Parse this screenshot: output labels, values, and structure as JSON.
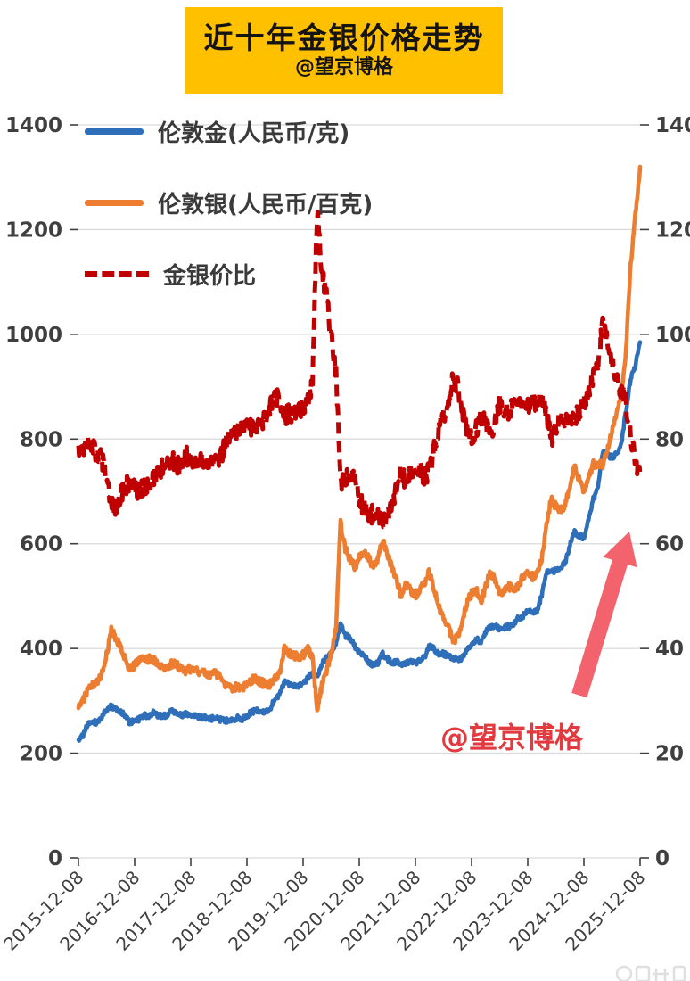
{
  "header": {
    "title": "近十年金银价格走势",
    "byline": "@望京博格"
  },
  "watermark": {
    "text": "@望京博格"
  },
  "colors": {
    "title_bg": "#FFC000",
    "watermark": "#E23A3F",
    "arrow": "#F2636E",
    "gridline": "#D9D9D9",
    "axis_text": "#3F3F3F"
  },
  "chart_data": {
    "type": "line",
    "title": "近十年金银价格走势",
    "x_start": "2015-12",
    "x_step": "1 month",
    "x_tick_labels": [
      "2015-12-08",
      "2016-12-08",
      "2017-12-08",
      "2018-12-08",
      "2019-12-08",
      "2020-12-08",
      "2021-12-08",
      "2022-12-08",
      "2023-12-08",
      "2024-12-08",
      "2025-12-08"
    ],
    "left_axis": {
      "max": 1400,
      "min": 0,
      "ticks": [
        1400,
        1200,
        1000,
        800,
        600,
        400,
        200,
        0
      ]
    },
    "right_axis": {
      "max": 140,
      "min": 0,
      "ticks": [
        140,
        120,
        100,
        80,
        60,
        40,
        20,
        0
      ]
    },
    "grid": "horizontal",
    "legend_position": "top-left-inside",
    "series": [
      {
        "name": "伦敦金(人民币/克)",
        "axis": "left",
        "color": "#2F6FBA",
        "style": "solid",
        "values": [
          222,
          235,
          255,
          262,
          258,
          270,
          285,
          290,
          283,
          278,
          272,
          258,
          263,
          265,
          272,
          270,
          277,
          272,
          270,
          274,
          282,
          278,
          272,
          276,
          272,
          270,
          268,
          268,
          265,
          268,
          265,
          262,
          263,
          262,
          268,
          266,
          272,
          278,
          282,
          278,
          278,
          285,
          305,
          312,
          335,
          332,
          330,
          328,
          330,
          345,
          352,
          345,
          370,
          382,
          390,
          408,
          448,
          425,
          420,
          405,
          392,
          390,
          372,
          368,
          372,
          390,
          380,
          372,
          375,
          368,
          372,
          378,
          372,
          378,
          385,
          405,
          398,
          390,
          390,
          385,
          382,
          378,
          382,
          398,
          405,
          418,
          412,
          432,
          440,
          442,
          438,
          440,
          442,
          445,
          458,
          462,
          472,
          468,
          472,
          502,
          545,
          548,
          548,
          555,
          565,
          598,
          622,
          615,
          612,
          650,
          685,
          705,
          775,
          770,
          765,
          772,
          790,
          855,
          915,
          940,
          985
        ]
      },
      {
        "name": "伦敦银(人民币/百克)",
        "axis": "left",
        "color": "#ED7D31",
        "style": "solid",
        "values": [
          290,
          300,
          320,
          330,
          335,
          352,
          390,
          435,
          420,
          402,
          380,
          360,
          368,
          375,
          382,
          380,
          378,
          372,
          362,
          360,
          372,
          368,
          362,
          358,
          362,
          360,
          355,
          352,
          350,
          352,
          348,
          335,
          328,
          322,
          328,
          325,
          332,
          340,
          342,
          335,
          332,
          332,
          345,
          355,
          398,
          392,
          388,
          382,
          388,
          398,
          385,
          280,
          330,
          358,
          392,
          438,
          640,
          590,
          570,
          555,
          572,
          585,
          572,
          555,
          572,
          610,
          580,
          555,
          528,
          500,
          522,
          512,
          502,
          512,
          528,
          548,
          512,
          478,
          462,
          442,
          415,
          422,
          448,
          488,
          505,
          512,
          488,
          518,
          545,
          532,
          505,
          512,
          518,
          512,
          520,
          538,
          548,
          535,
          548,
          572,
          638,
          685,
          672,
          665,
          672,
          712,
          745,
          725,
          702,
          728,
          752,
          750,
          752,
          778,
          814,
          848,
          888,
          972,
          1135,
          1230,
          1320
        ]
      },
      {
        "name": "金银价比",
        "axis": "right",
        "color": "#C00000",
        "style": "dashed",
        "values": [
          77,
          78,
          80,
          79,
          77,
          76,
          73,
          67,
          67,
          69,
          71,
          72,
          71,
          70,
          71,
          71,
          73,
          73,
          75,
          76,
          76,
          75,
          75,
          77,
          75,
          75,
          76,
          76,
          76,
          76,
          76,
          78,
          80,
          81,
          82,
          82,
          82,
          82,
          82,
          83,
          84,
          86,
          88,
          88,
          84,
          85,
          85,
          86,
          85,
          87,
          91,
          123,
          112,
          107,
          100,
          93,
          72,
          72,
          74,
          73,
          68,
          67,
          65,
          66,
          65,
          64,
          66,
          67,
          71,
          74,
          71,
          74,
          74,
          74,
          73,
          74,
          78,
          82,
          84,
          87,
          92,
          90,
          85,
          82,
          80,
          82,
          84,
          83,
          81,
          83,
          87,
          86,
          85,
          87,
          88,
          86,
          86,
          88,
          86,
          88,
          85,
          80,
          82,
          84,
          84,
          84,
          84,
          85,
          87,
          89,
          92,
          94,
          103,
          99,
          94,
          91,
          89,
          87,
          80,
          76,
          73
        ]
      }
    ]
  }
}
